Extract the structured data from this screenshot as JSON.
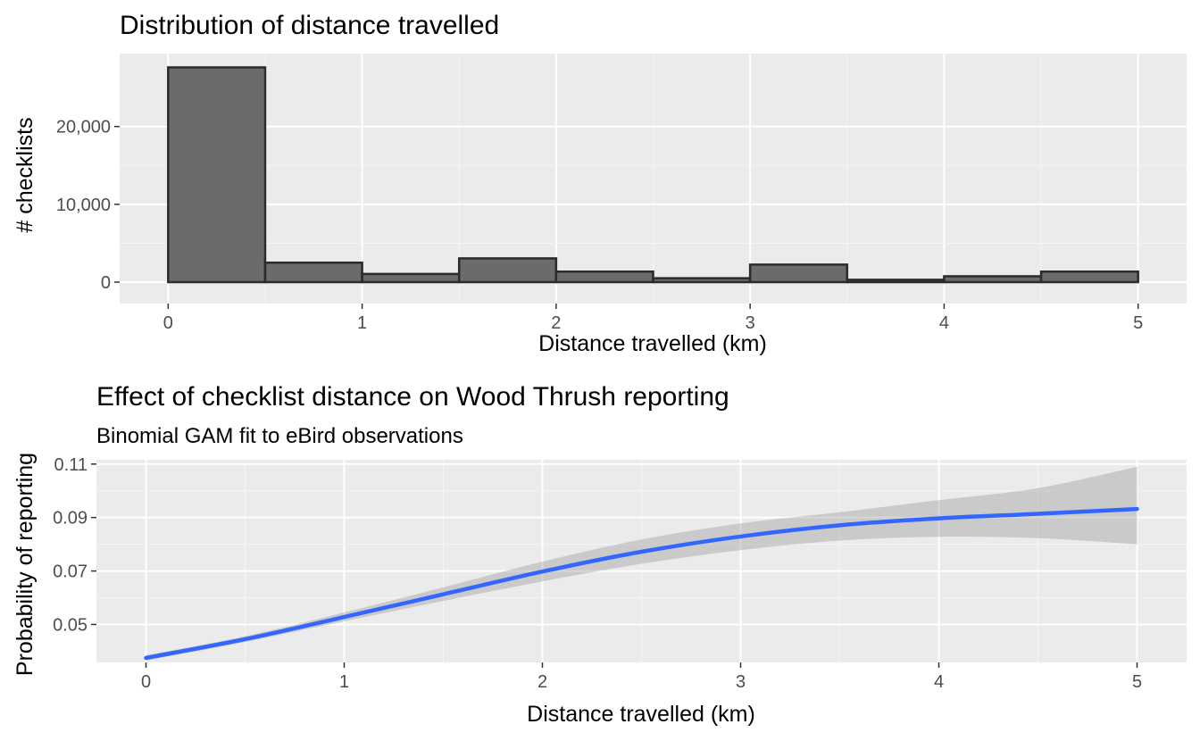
{
  "colors": {
    "panel_bg": "#ebebeb",
    "grid_major": "#ffffff",
    "grid_minor": "#f5f5f5",
    "bar_fill": "#6b6b6b",
    "bar_stroke": "#2b2b2b",
    "line": "#3366ff",
    "ribbon": "#bfbfbf",
    "tick": "#333333"
  },
  "chart_data": [
    {
      "type": "bar",
      "title": "Distribution of distance travelled",
      "xlabel": "Distance travelled (km)",
      "ylabel": "# checklists",
      "xlim": [
        -0.25,
        5.25
      ],
      "ylim": [
        0,
        28000
      ],
      "xticks": [
        0,
        1,
        2,
        3,
        4,
        5
      ],
      "xtick_labels": [
        "0",
        "1",
        "2",
        "3",
        "4",
        "5"
      ],
      "yticks": [
        0,
        10000,
        20000
      ],
      "ytick_labels": [
        "0",
        "10,000",
        "20,000"
      ],
      "grid": true,
      "bin_width": 0.5,
      "bins": [
        {
          "start": 0.0,
          "end": 0.5,
          "count": 27600
        },
        {
          "start": 0.5,
          "end": 1.0,
          "count": 2500
        },
        {
          "start": 1.0,
          "end": 1.5,
          "count": 1050
        },
        {
          "start": 1.5,
          "end": 2.0,
          "count": 3050
        },
        {
          "start": 2.0,
          "end": 2.5,
          "count": 1350
        },
        {
          "start": 2.5,
          "end": 3.0,
          "count": 500
        },
        {
          "start": 3.0,
          "end": 3.5,
          "count": 2250
        },
        {
          "start": 3.5,
          "end": 4.0,
          "count": 300
        },
        {
          "start": 4.0,
          "end": 4.5,
          "count": 750
        },
        {
          "start": 4.5,
          "end": 5.0,
          "count": 1350
        }
      ]
    },
    {
      "type": "line",
      "title": "Effect of checklist distance on Wood Thrush reporting",
      "subtitle": "Binomial GAM fit to eBird observations",
      "xlabel": "Distance travelled (km)",
      "ylabel": "Probability of reporting",
      "xlim": [
        -0.25,
        5.25
      ],
      "ylim": [
        0.0358,
        0.1116
      ],
      "xticks": [
        0,
        1,
        2,
        3,
        4,
        5
      ],
      "xtick_labels": [
        "0",
        "1",
        "2",
        "3",
        "4",
        "5"
      ],
      "yticks": [
        0.05,
        0.07,
        0.09,
        0.11
      ],
      "ytick_labels": [
        "0.05",
        "0.07",
        "0.09",
        "0.11"
      ],
      "grid": true,
      "x": [
        0,
        0.5,
        1,
        1.5,
        2,
        2.5,
        3,
        3.5,
        4,
        4.5,
        5
      ],
      "y": [
        0.0375,
        0.0445,
        0.0528,
        0.0613,
        0.0698,
        0.0772,
        0.0829,
        0.0871,
        0.0897,
        0.0914,
        0.0932
      ],
      "lower": [
        0.0365,
        0.0435,
        0.0512,
        0.0588,
        0.0661,
        0.0727,
        0.0778,
        0.0814,
        0.0828,
        0.0823,
        0.08
      ],
      "upper": [
        0.0385,
        0.0456,
        0.0545,
        0.0639,
        0.0735,
        0.0818,
        0.0878,
        0.092,
        0.0965,
        0.101,
        0.109
      ]
    }
  ]
}
